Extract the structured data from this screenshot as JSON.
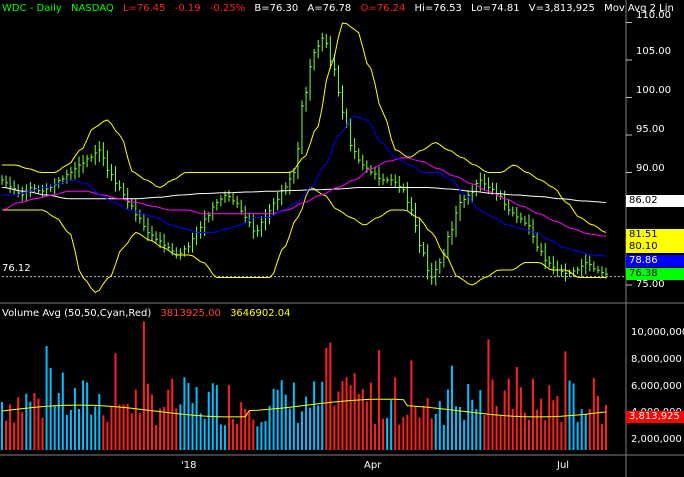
{
  "header": {
    "symbol": "WDC - Daily",
    "exchange": "NASDAQ",
    "last": "L=76.45",
    "change": "-0.19",
    "change_pct": "-0.25%",
    "bid": "B=76.30",
    "ask": "A=76.78",
    "open": "O=76.24",
    "high": "Hi=76.53",
    "low": "Lo=74.81",
    "volume": "V=3,813,925",
    "mov_avg": "Mov Avg 2 Lin"
  },
  "volume_header": {
    "title": "Volume Avg (50,50,Cyan,Red)",
    "value1": "3813925.00",
    "value2": "3646902.04"
  },
  "price_axis": {
    "ticks": [
      "110.00",
      "105.00",
      "100.00",
      "95.00",
      "90.00",
      "75.00"
    ]
  },
  "volume_axis": {
    "ticks": [
      "10,000,000",
      "8,000,000",
      "6,000,000",
      "4,000,000",
      "2,000,000"
    ]
  },
  "x_axis": {
    "ticks": [
      "'18",
      "Apr",
      "Jul"
    ]
  },
  "left_marker": "76.12",
  "price_tags": [
    {
      "text": "86.02",
      "bg": "#ffffff",
      "fg": "#000000"
    },
    {
      "text": "81.51",
      "bg": "#ffff00",
      "fg": "#000000"
    },
    {
      "text": "80.10",
      "bg": "#ffff00",
      "fg": "#000000"
    },
    {
      "text": "78.86",
      "bg": "#0000ff",
      "fg": "#ffffff"
    },
    {
      "text": "76.38",
      "bg": "#00ff00",
      "fg": "#000000"
    }
  ],
  "volume_tag": {
    "text": "3,813,925",
    "bg": "#ff0000",
    "fg": "#ffffff"
  },
  "colors": {
    "symbol": "#00ff00",
    "down": "#ff0000",
    "neutral": "#ffffff",
    "volume_title": "#ffffff",
    "volume_value1": "#ff4040",
    "volume_value2": "#ffff00",
    "price_bars": "#7fff3f",
    "bollinger": "#ffff00",
    "ma_short": "#0000ff",
    "ma_mid": "#ff00ff",
    "ma_long": "#ffffff",
    "volume_up": "#00bfff",
    "volume_down": "#ff2020",
    "volume_avg": "#ffff00"
  },
  "chart_data": {
    "type": "line",
    "title": "WDC - Daily",
    "price_range": [
      73,
      111
    ],
    "volume_range": [
      0,
      11000000
    ],
    "close_anchors": [
      89,
      88,
      87,
      88,
      87.5,
      88,
      89,
      90,
      91,
      92,
      93,
      90,
      88,
      86,
      84,
      82,
      81,
      80,
      79,
      80,
      82,
      84,
      86,
      87,
      86,
      84,
      82,
      84,
      86,
      88,
      90,
      100,
      106,
      108,
      104,
      98,
      93,
      91,
      90,
      89,
      89,
      88,
      85,
      80,
      76,
      78,
      82,
      86,
      87,
      89,
      88,
      87,
      85,
      84,
      83,
      80,
      78,
      77,
      76.5,
      77,
      78,
      77,
      76.45
    ],
    "bollinger_upper_anchors": [
      91,
      91,
      90.5,
      90,
      90,
      91,
      93,
      96,
      97,
      95,
      90,
      89,
      88,
      89,
      90,
      90,
      90,
      90,
      90,
      90,
      90,
      90,
      90,
      92,
      96,
      104,
      110,
      109,
      104,
      98,
      93,
      92,
      93,
      94,
      93,
      92,
      91,
      90,
      90,
      91,
      90,
      89,
      88,
      86,
      84,
      83,
      82
    ],
    "bollinger_lower_anchors": [
      85,
      85,
      85,
      85,
      84,
      82,
      76,
      74,
      76,
      80,
      82,
      81,
      80,
      79,
      79,
      78,
      76,
      76,
      76,
      76,
      76,
      80,
      84,
      88,
      87,
      85,
      84,
      83,
      84,
      85,
      85,
      84,
      82,
      79,
      76,
      75,
      76,
      77,
      77,
      78,
      78,
      77,
      77,
      76,
      76,
      76
    ],
    "ma_short_anchors": [
      87,
      87,
      87.5,
      88,
      88.5,
      89,
      88.5,
      87,
      86,
      85,
      84.5,
      84,
      83,
      82.5,
      82,
      82,
      82.5,
      83,
      84,
      84,
      85,
      86,
      88,
      91,
      95,
      97.5,
      97,
      94,
      92,
      91,
      90,
      90,
      89,
      87,
      85,
      84,
      83,
      82.5,
      82,
      81,
      80,
      79.5,
      79,
      78.86
    ],
    "ma_mid_anchors": [
      85,
      86,
      86.5,
      87,
      87.5,
      87.5,
      87,
      86.5,
      86,
      85.5,
      85,
      85,
      84.5,
      84.5,
      84.5,
      84.5,
      84.5,
      85,
      86,
      87,
      88,
      89,
      90.5,
      91.5,
      92,
      91.5,
      90.5,
      89.5,
      88.5,
      87.5,
      86.5,
      85.5,
      84.5,
      83.5,
      82.5,
      81.8,
      81.51
    ],
    "ma_long_anchors": [
      88,
      87.5,
      87,
      86.5,
      86.5,
      86.5,
      86.5,
      86.7,
      87,
      87.2,
      87.3,
      87.4,
      87.5,
      87.6,
      87.7,
      87.8,
      88,
      88,
      88,
      88,
      87.8,
      87.5,
      87.2,
      87,
      86.8,
      86.5,
      86.2,
      86.02
    ],
    "last_close": 76.45,
    "volume": 3813925,
    "volume_avg": 3646902.04
  }
}
